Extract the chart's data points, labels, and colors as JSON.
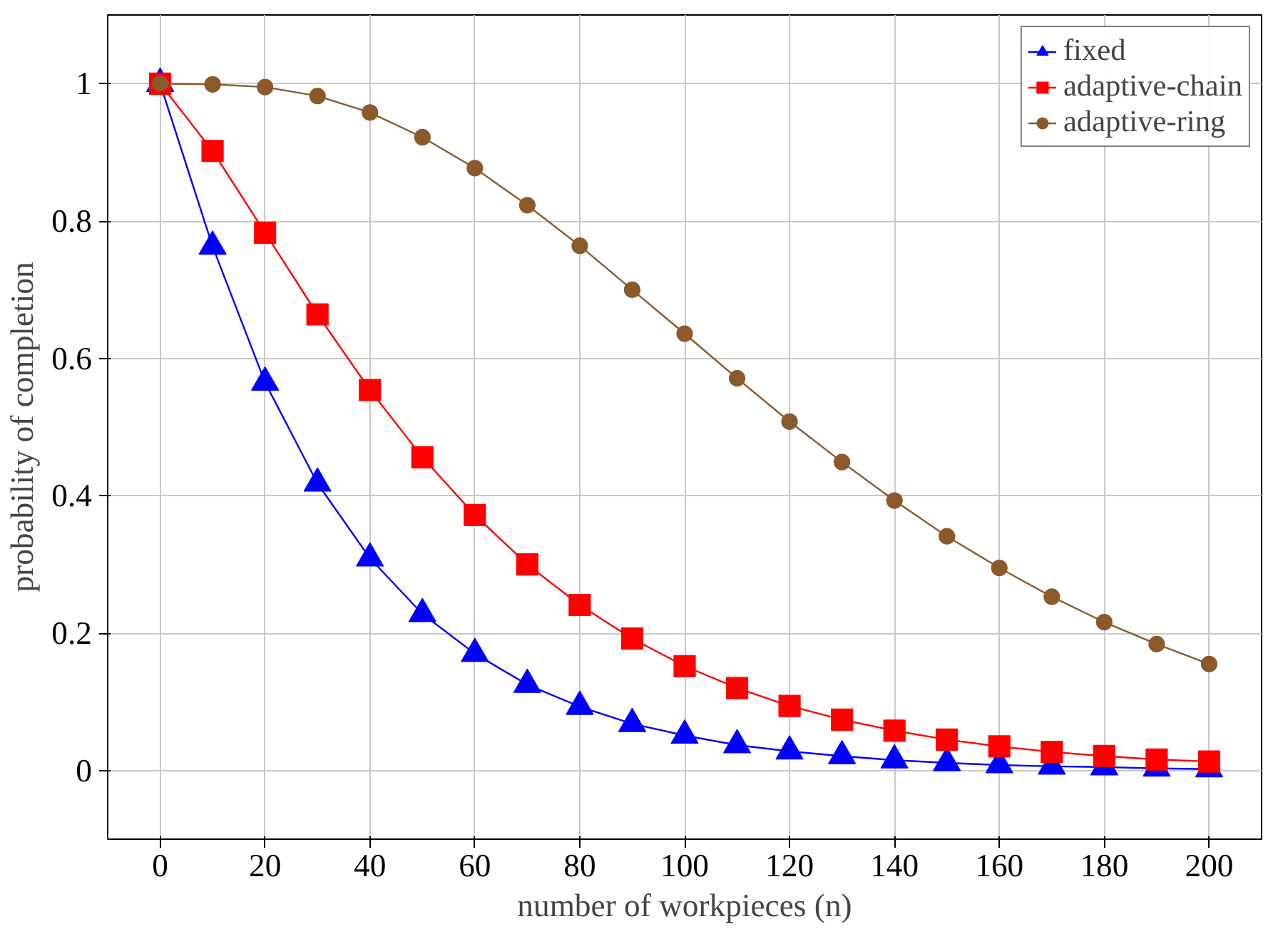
{
  "chart_data": {
    "type": "line",
    "xlabel": "number of workpieces (n)",
    "ylabel": "probability of completion",
    "x": [
      0,
      10,
      20,
      30,
      40,
      50,
      60,
      70,
      80,
      90,
      100,
      110,
      120,
      130,
      140,
      150,
      160,
      170,
      180,
      190,
      200
    ],
    "series": [
      {
        "name": "fixed",
        "color": "#0000ff",
        "marker": "triangle",
        "values": [
          1,
          0.763,
          0.565,
          0.418,
          0.309,
          0.228,
          0.17,
          0.125,
          0.093,
          0.068,
          0.051,
          0.037,
          0.028,
          0.021,
          0.015,
          0.011,
          0.008,
          0.006,
          0.005,
          0.003,
          0.002
        ]
      },
      {
        "name": "adaptive-chain",
        "color": "#ff0000",
        "marker": "square",
        "values": [
          1,
          0.902,
          0.783,
          0.664,
          0.554,
          0.456,
          0.372,
          0.3,
          0.241,
          0.192,
          0.152,
          0.12,
          0.094,
          0.074,
          0.058,
          0.045,
          0.035,
          0.027,
          0.021,
          0.016,
          0.013
        ]
      },
      {
        "name": "adaptive-ring",
        "color": "#8b5a2b",
        "marker": "circle",
        "values": [
          1,
          0.999,
          0.995,
          0.982,
          0.958,
          0.922,
          0.877,
          0.823,
          0.764,
          0.7,
          0.636,
          0.571,
          0.508,
          0.449,
          0.393,
          0.341,
          0.295,
          0.253,
          0.216,
          0.184,
          0.155
        ]
      }
    ],
    "xlim": [
      -10,
      210
    ],
    "ylim": [
      -0.1,
      1.1
    ],
    "xticks": [
      0,
      20,
      40,
      60,
      80,
      100,
      120,
      140,
      160,
      180,
      200
    ],
    "yticks": [
      0,
      0.2,
      0.4,
      0.6,
      0.8,
      1
    ],
    "grid": true,
    "legend": "top right",
    "line_style": "solid"
  }
}
